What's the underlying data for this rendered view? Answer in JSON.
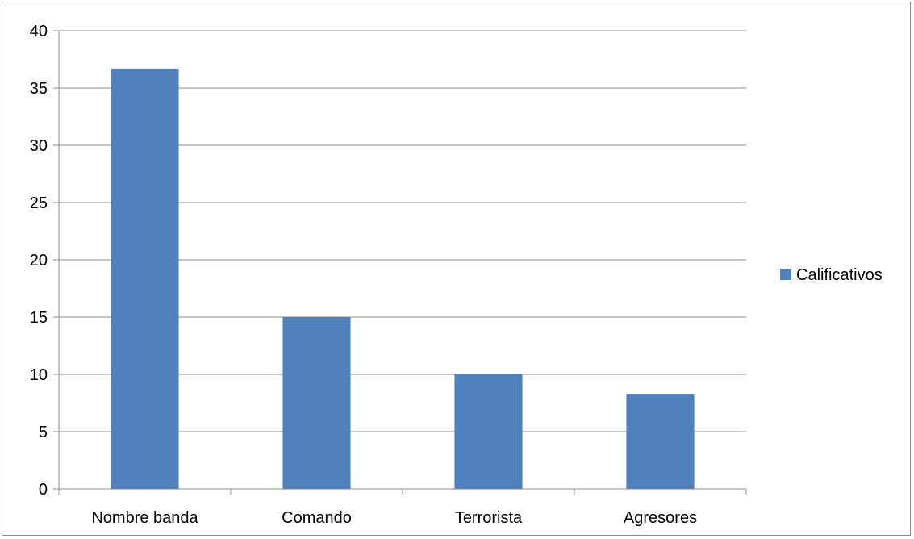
{
  "chart_data": {
    "type": "bar",
    "categories": [
      "Nombre banda",
      "Comando",
      "Terrorista",
      "Agresores"
    ],
    "series": [
      {
        "name": "Calificativos",
        "values": [
          36.7,
          15,
          10,
          8.3
        ],
        "color": "#4f81bd"
      }
    ],
    "title": "",
    "xlabel": "",
    "ylabel": "",
    "ylim": [
      0,
      40
    ],
    "yticks": [
      0,
      5,
      10,
      15,
      20,
      25,
      30,
      35,
      40
    ],
    "grid": true,
    "legend_position": "right"
  }
}
